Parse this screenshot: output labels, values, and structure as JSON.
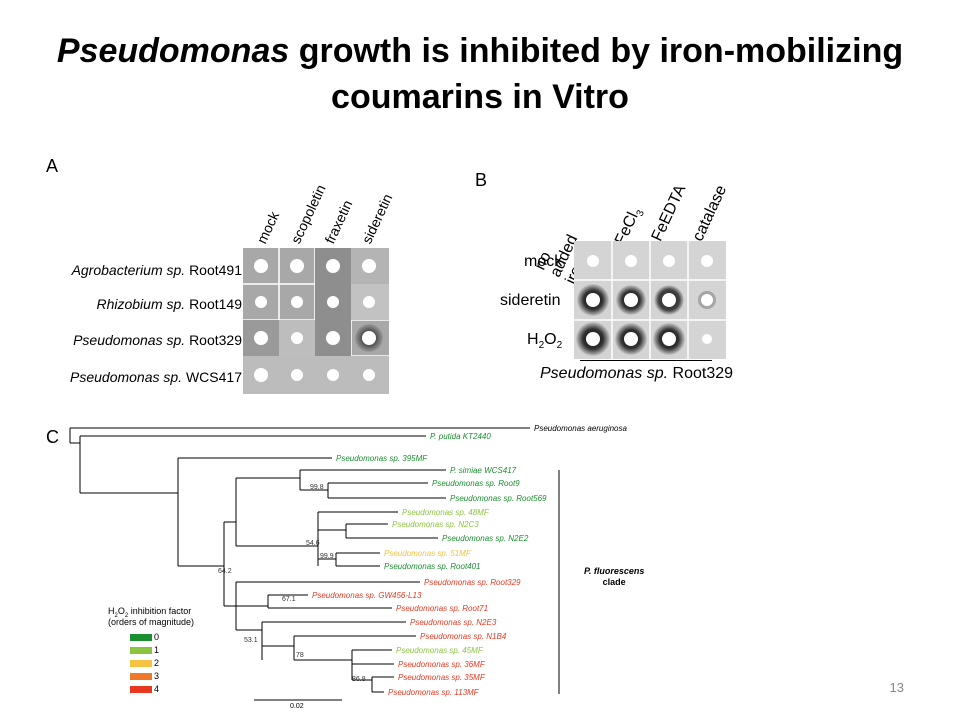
{
  "title": {
    "italic": "Pseudomonas",
    "rest": " growth is inhibited by iron-mobilizing",
    "line2": "coumarins in Vitro"
  },
  "panel_a": {
    "letter": "A",
    "columns": [
      "mock",
      "scopoletin",
      "fraxetin",
      "sideretin"
    ],
    "rows": [
      {
        "genus": "Agrobacterium sp.",
        "strain": "Root491"
      },
      {
        "genus": "Rhizobium sp.",
        "strain": "Root149"
      },
      {
        "genus": "Pseudomonas sp.",
        "strain": "Root329"
      },
      {
        "genus": "Pseudomonas sp.",
        "strain": "WCS417"
      }
    ]
  },
  "panel_b": {
    "letter": "B",
    "columns": [
      "no added iron",
      "FeCl3",
      "FeEDTA",
      "catalase"
    ],
    "rows": [
      "mock",
      "sideretin",
      "H2O2"
    ],
    "caption_italic": "Pseudomonas sp.",
    "caption_rest": "Root329"
  },
  "panel_c": {
    "letter": "C",
    "clade_label_1": "P. fluorescens",
    "clade_label_2": "clade",
    "scale_label": "0.02",
    "legend_title_1": "H2O2 inhibition factor",
    "legend_title_2": "(orders of magnitude)",
    "legend": [
      {
        "label": "0",
        "color": "#1a8f2e"
      },
      {
        "label": "1",
        "color": "#8bc43f"
      },
      {
        "label": "2",
        "color": "#f5c242"
      },
      {
        "label": "3",
        "color": "#f07a2a"
      },
      {
        "label": "4",
        "color": "#e8381f"
      }
    ],
    "taxa": [
      {
        "name": "Pseudomonas aeruginosa",
        "color": "#000000"
      },
      {
        "name": "P. putida KT2440",
        "color": "#1a8f2e"
      },
      {
        "name": "Pseudomonas sp. 395MF",
        "color": "#1a8f2e"
      },
      {
        "name": "P. simiae WCS417",
        "color": "#1a8f2e"
      },
      {
        "name": "Pseudomonas sp. Root9",
        "color": "#1a8f2e"
      },
      {
        "name": "Pseudomonas sp. Root569",
        "color": "#1a8f2e"
      },
      {
        "name": "Pseudomonas sp. 48MF",
        "color": "#8bc43f"
      },
      {
        "name": "Pseudomonas sp. N2C3",
        "color": "#8bc43f"
      },
      {
        "name": "Pseudomonas sp. N2E2",
        "color": "#1a8f2e"
      },
      {
        "name": "Pseudomonas sp. 51MF",
        "color": "#f5c242"
      },
      {
        "name": "Pseudomonas sp. Root401",
        "color": "#1a8f2e"
      },
      {
        "name": "Pseudomonas sp. Root329",
        "color": "#e8381f"
      },
      {
        "name": "Pseudomonas sp. GW456-L13",
        "color": "#e8381f"
      },
      {
        "name": "Pseudomonas sp. Root71",
        "color": "#e8381f"
      },
      {
        "name": "Pseudomonas sp. N2E3",
        "color": "#e8381f"
      },
      {
        "name": "Pseudomonas sp. N1B4",
        "color": "#e8381f"
      },
      {
        "name": "Pseudomonas sp. 45MF",
        "color": "#8bc43f"
      },
      {
        "name": "Pseudomonas sp. 36MF",
        "color": "#e8381f"
      },
      {
        "name": "Pseudomonas sp. 35MF",
        "color": "#e8381f"
      },
      {
        "name": "Pseudomonas sp. 113MF",
        "color": "#e8381f"
      }
    ],
    "bootstraps": [
      "99.8",
      "54.6",
      "99.9",
      "64.2",
      "67.1",
      "53.1",
      "78",
      "86.8"
    ]
  },
  "page_number": "13"
}
